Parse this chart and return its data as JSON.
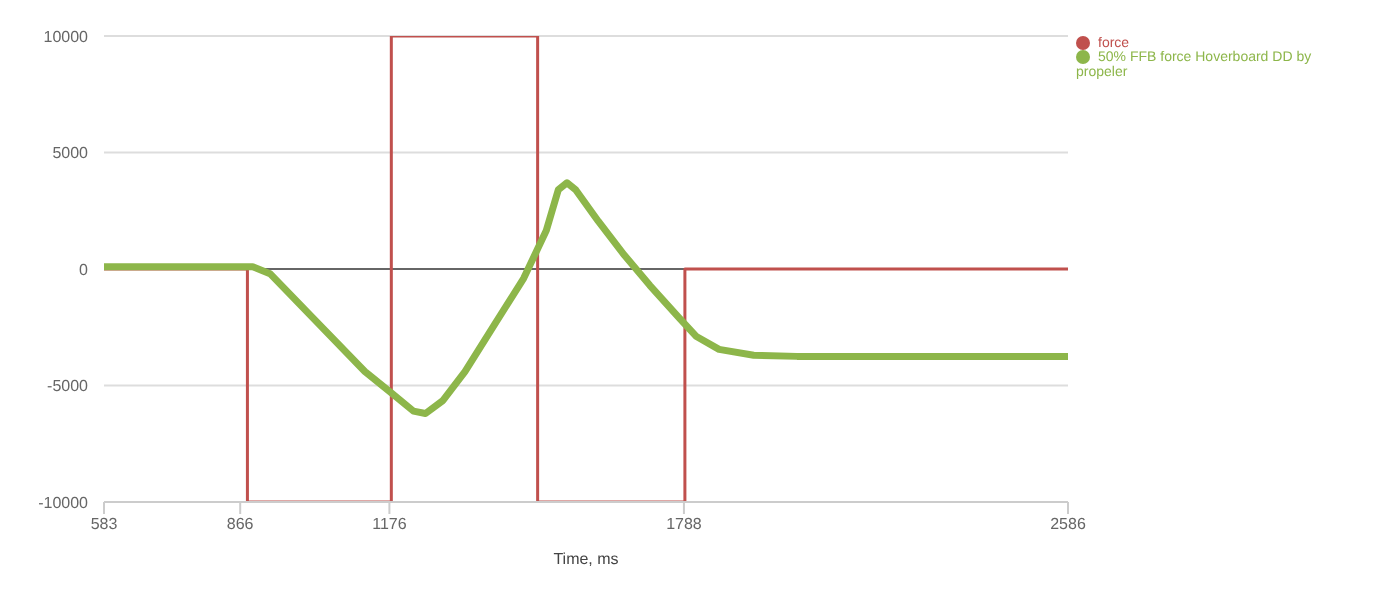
{
  "chart_data": {
    "type": "line",
    "xlabel": "Time, ms",
    "xlim": [
      583,
      2586
    ],
    "xticks": [
      583,
      866,
      1176,
      1788,
      2586
    ],
    "ylim": [
      -10000,
      10000
    ],
    "yticks": [
      -10000,
      -5000,
      0,
      5000,
      10000
    ],
    "grid": "y",
    "legend": "top right",
    "marker": "none",
    "series": [
      {
        "name": "force",
        "type": "step",
        "color": "#c0504d",
        "x": [
          583,
          881,
          1180,
          1484,
          1790,
          2586
        ],
        "values": [
          0,
          -10000,
          10000,
          -10000,
          0,
          0
        ]
      },
      {
        "name": "50% FFB force Hoverboard DD by propeler",
        "type": "line",
        "color": "#8db64a",
        "x": [
          583,
          892,
          928,
          1017,
          1125,
          1179,
          1226,
          1251,
          1287,
          1333,
          1394,
          1455,
          1502,
          1527,
          1545,
          1563,
          1610,
          1664,
          1717,
          1778,
          1814,
          1861,
          1933,
          2023,
          2586
        ],
        "values": [
          100,
          100,
          -200,
          -2100,
          -4400,
          -5300,
          -6100,
          -6200,
          -5650,
          -4400,
          -2400,
          -400,
          1650,
          3400,
          3700,
          3400,
          2050,
          600,
          -700,
          -2100,
          -2900,
          -3450,
          -3700,
          -3750,
          -3750
        ]
      }
    ]
  }
}
